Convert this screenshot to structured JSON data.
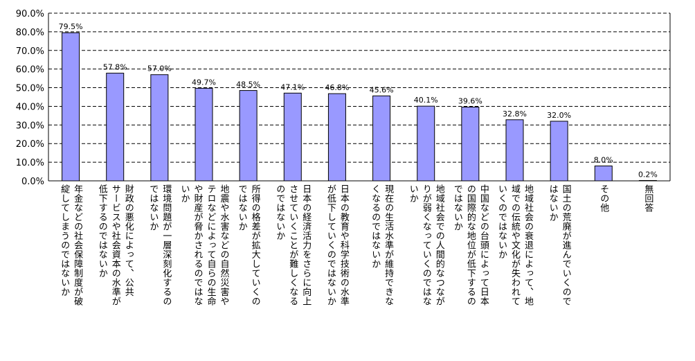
{
  "chart_data": {
    "type": "bar",
    "title": "",
    "xlabel": "",
    "ylabel": "",
    "ylim": [
      0,
      90
    ],
    "yticks": [
      "0.0%",
      "10.0%",
      "20.0%",
      "30.0%",
      "40.0%",
      "50.0%",
      "60.0%",
      "70.0%",
      "80.0%",
      "90.0%"
    ],
    "grid": "horizontal-dashed",
    "bar_color": "#9999ff",
    "categories": [
      "年金などの社会保障制度が破\n綻してしまうのではないか",
      "財政の悪化によって、公共\nサービスや社会資本の水準が\n低下するのではないか",
      "環境問題が一層深刻化するの\nではないか",
      "地震や水害などの自然災害や\nテロなどによって自らの生命\nや財産が脅かされるのではな\nいか",
      "所得の格差が拡大していくの\nではないか",
      "日本の経済活力をさらに向上\nさせていくことが難しくなる\nのではないか",
      "日本の教育や科学技術の水準\nが低下していくのではないか",
      "現在の生活水準が維持できな\nくなるのではないか",
      "地域社会での人間的なつなが\nりが弱くなっていくのではな\nいか",
      "中国などの台頭によって日本\nの国際的な地位が低下するの\nではないか",
      "地域社会の衰退によって、地\n域での伝統や文化が失われて\nいくのではないか",
      "国土の荒廃が進んでいくので\nはないか",
      "その他",
      "無回答"
    ],
    "values": [
      79.5,
      57.8,
      57.0,
      49.7,
      48.5,
      47.1,
      46.8,
      45.6,
      40.1,
      39.6,
      32.8,
      32.0,
      8.0,
      0.2
    ],
    "data_labels": [
      "79.5%",
      "57.8%",
      "57.0%",
      "49.7%",
      "48.5%",
      "47.1%",
      "46.8%",
      "45.6%",
      "40.1%",
      "39.6%",
      "32.8%",
      "32.0%",
      "8.0%",
      "0.2%"
    ]
  }
}
